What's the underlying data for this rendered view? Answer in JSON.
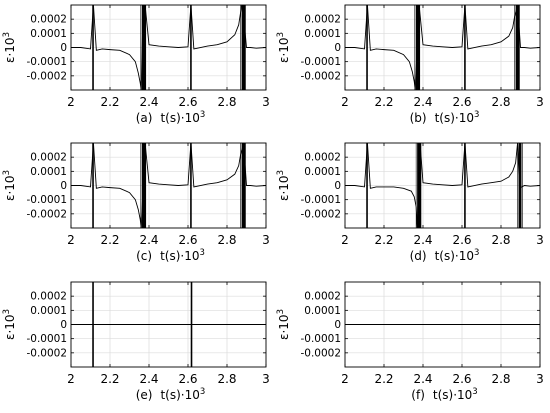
{
  "chart_data": [
    {
      "type": "line",
      "caption": "(a)",
      "xlabel": "t(s)·10",
      "xlabel_exp": "3",
      "ylabel": "ε·10",
      "ylabel_exp": "3",
      "xlim": [
        2,
        3
      ],
      "ylim": [
        -0.0003,
        0.0003
      ],
      "xticks": [
        "2",
        "2.2",
        "2.4",
        "2.6",
        "2.8",
        "3"
      ],
      "yticks": [
        "0.0002",
        "0.0001",
        "0",
        "-0.0001",
        "-0.0002"
      ],
      "grid": true,
      "x": [
        2.0,
        2.05,
        2.1,
        2.115,
        2.13,
        2.16,
        2.2,
        2.25,
        2.3,
        2.33,
        2.345,
        2.355,
        2.36,
        2.37,
        2.38,
        2.4,
        2.45,
        2.5,
        2.55,
        2.6,
        2.615,
        2.63,
        2.7,
        2.75,
        2.8,
        2.84,
        2.86,
        2.87,
        2.875,
        2.88,
        2.9,
        2.92,
        2.95,
        3.0
      ],
      "y": [
        0.0,
        0.0,
        -1e-05,
        0.0003,
        -2e-05,
        -1e-05,
        -1.5e-05,
        -2e-05,
        -5e-05,
        -0.0001,
        -0.00018,
        -0.00025,
        -0.0003,
        0.0003,
        0.0003,
        2e-05,
        1e-05,
        5e-06,
        0.0,
        5e-06,
        0.0003,
        -1e-05,
        1e-05,
        2e-05,
        4e-05,
        9e-05,
        0.00016,
        0.00025,
        0.0003,
        0.0003,
        0.0,
        0.0,
        -5e-06,
        0.0
      ],
      "spikes": [
        2.113,
        2.615
      ],
      "bursts": [
        [
          2.363,
          2.385
        ],
        [
          2.875,
          2.895
        ]
      ]
    },
    {
      "type": "line",
      "caption": "(b)",
      "xlabel": "t(s)·10",
      "xlabel_exp": "3",
      "ylabel": "ε·10",
      "ylabel_exp": "3",
      "xlim": [
        2,
        3
      ],
      "ylim": [
        -0.0003,
        0.0003
      ],
      "xticks": [
        "2",
        "2.2",
        "2.4",
        "2.6",
        "2.8",
        "3"
      ],
      "yticks": [
        "0.0002",
        "0.0001",
        "0",
        "-0.0001",
        "-0.0002"
      ],
      "grid": true,
      "x": [
        2.0,
        2.05,
        2.1,
        2.115,
        2.13,
        2.16,
        2.2,
        2.25,
        2.3,
        2.33,
        2.345,
        2.355,
        2.36,
        2.38,
        2.4,
        2.45,
        2.5,
        2.55,
        2.6,
        2.615,
        2.63,
        2.7,
        2.75,
        2.8,
        2.84,
        2.86,
        2.87,
        2.885,
        2.9,
        2.92,
        2.95,
        3.0
      ],
      "y": [
        0.0,
        0.0,
        -1e-05,
        0.0003,
        -2e-05,
        -1e-05,
        -1.5e-05,
        -2e-05,
        -5e-05,
        -0.0001,
        -0.00017,
        -0.00024,
        -0.0003,
        0.0003,
        2e-05,
        1e-05,
        5e-06,
        0.0,
        5e-06,
        0.0003,
        -1e-05,
        1e-05,
        2e-05,
        4e-05,
        8e-05,
        0.00014,
        0.00022,
        0.0003,
        0.0,
        0.0,
        -5e-06,
        0.0
      ],
      "spikes": [
        2.113,
        2.615
      ],
      "bursts": [
        [
          2.363,
          2.385
        ],
        [
          2.875,
          2.895
        ]
      ]
    },
    {
      "type": "line",
      "caption": "(c)",
      "xlabel": "t(s)·10",
      "xlabel_exp": "3",
      "ylabel": "ε·10",
      "ylabel_exp": "3",
      "xlim": [
        2,
        3
      ],
      "ylim": [
        -0.0003,
        0.0003
      ],
      "xticks": [
        "2",
        "2.2",
        "2.4",
        "2.6",
        "2.8",
        "3"
      ],
      "yticks": [
        "0.0002",
        "0.0001",
        "0",
        "-0.0001",
        "-0.0002"
      ],
      "grid": true,
      "x": [
        2.0,
        2.05,
        2.1,
        2.115,
        2.13,
        2.16,
        2.2,
        2.25,
        2.3,
        2.33,
        2.345,
        2.355,
        2.36,
        2.38,
        2.4,
        2.45,
        2.5,
        2.55,
        2.6,
        2.615,
        2.63,
        2.7,
        2.75,
        2.8,
        2.84,
        2.86,
        2.87,
        2.885,
        2.9,
        2.92,
        2.95,
        3.0
      ],
      "y": [
        0.0,
        0.0,
        -1e-05,
        0.0003,
        -2e-05,
        -1e-05,
        -1.5e-05,
        -2e-05,
        -5e-05,
        -0.0001,
        -0.00017,
        -0.00024,
        -0.0003,
        0.0003,
        2e-05,
        1e-05,
        5e-06,
        0.0,
        5e-06,
        0.0003,
        -1e-05,
        1e-05,
        2e-05,
        4e-05,
        8e-05,
        0.00014,
        0.00022,
        0.0003,
        0.0,
        0.0,
        -5e-06,
        0.0
      ],
      "spikes": [
        2.113,
        2.615
      ],
      "bursts": [
        [
          2.363,
          2.385
        ],
        [
          2.875,
          2.895
        ]
      ]
    },
    {
      "type": "line",
      "caption": "(d)",
      "xlabel": "t(s)·10",
      "xlabel_exp": "3",
      "ylabel": "ε·10",
      "ylabel_exp": "3",
      "xlim": [
        2,
        3
      ],
      "ylim": [
        -0.0003,
        0.0003
      ],
      "xticks": [
        "2",
        "2.2",
        "2.4",
        "2.6",
        "2.8",
        "3"
      ],
      "yticks": [
        "0.0002",
        "0.0001",
        "0",
        "-0.0001",
        "-0.0002"
      ],
      "grid": true,
      "x": [
        2.0,
        2.05,
        2.1,
        2.115,
        2.13,
        2.16,
        2.2,
        2.25,
        2.3,
        2.34,
        2.355,
        2.365,
        2.37,
        2.385,
        2.4,
        2.45,
        2.5,
        2.55,
        2.6,
        2.615,
        2.63,
        2.7,
        2.75,
        2.8,
        2.84,
        2.86,
        2.875,
        2.885,
        2.895,
        2.92,
        2.95,
        3.0
      ],
      "y": [
        0.0,
        0.0,
        -1e-05,
        0.0003,
        -2e-05,
        -1e-05,
        -1e-05,
        -1e-05,
        -2e-05,
        -4e-05,
        -8e-05,
        -0.00015,
        -0.0003,
        0.0003,
        2e-05,
        1e-05,
        5e-06,
        0.0,
        5e-06,
        0.0003,
        -1e-05,
        1e-05,
        2e-05,
        3e-05,
        6e-05,
        0.0001,
        0.00016,
        0.0003,
        -2e-05,
        0.0,
        -5e-06,
        0.0
      ],
      "spikes": [
        2.113,
        2.615
      ],
      "bursts": [
        [
          2.37,
          2.39
        ],
        [
          2.89,
          2.905
        ]
      ]
    },
    {
      "type": "line",
      "caption": "(e)",
      "xlabel": "t(s)·10",
      "xlabel_exp": "3",
      "ylabel": "ε·10",
      "ylabel_exp": "3",
      "xlim": [
        2,
        3
      ],
      "ylim": [
        -0.0003,
        0.0003
      ],
      "xticks": [
        "2",
        "2.2",
        "2.4",
        "2.6",
        "2.8",
        "3"
      ],
      "yticks": [
        "0.0002",
        "0.0001",
        "0",
        "-0.0001",
        "-0.0002"
      ],
      "grid": true,
      "x": [
        2.0,
        2.1,
        2.2,
        2.3,
        2.4,
        2.5,
        2.6,
        2.7,
        2.8,
        2.9,
        3.0
      ],
      "y": [
        0.0,
        0.0,
        0.0,
        0.0,
        0.0,
        0.0,
        0.0,
        0.0,
        0.0,
        0.0,
        0.0
      ],
      "spikes": [
        2.113,
        2.618
      ],
      "bursts": []
    },
    {
      "type": "line",
      "caption": "(f)",
      "xlabel": "t(s)·10",
      "xlabel_exp": "3",
      "ylabel": "ε·10",
      "ylabel_exp": "3",
      "xlim": [
        2,
        3
      ],
      "ylim": [
        -0.0003,
        0.0003
      ],
      "xticks": [
        "2",
        "2.2",
        "2.4",
        "2.6",
        "2.8",
        "3"
      ],
      "yticks": [
        "0.0002",
        "0.0001",
        "0",
        "-0.0001",
        "-0.0002"
      ],
      "grid": true,
      "x": [
        2.0,
        2.1,
        2.2,
        2.3,
        2.4,
        2.5,
        2.6,
        2.7,
        2.8,
        2.9,
        3.0
      ],
      "y": [
        0.0,
        0.0,
        0.0,
        0.0,
        0.0,
        0.0,
        0.0,
        0.0,
        0.0,
        0.0,
        0.0
      ],
      "spikes": [],
      "bursts": []
    }
  ]
}
